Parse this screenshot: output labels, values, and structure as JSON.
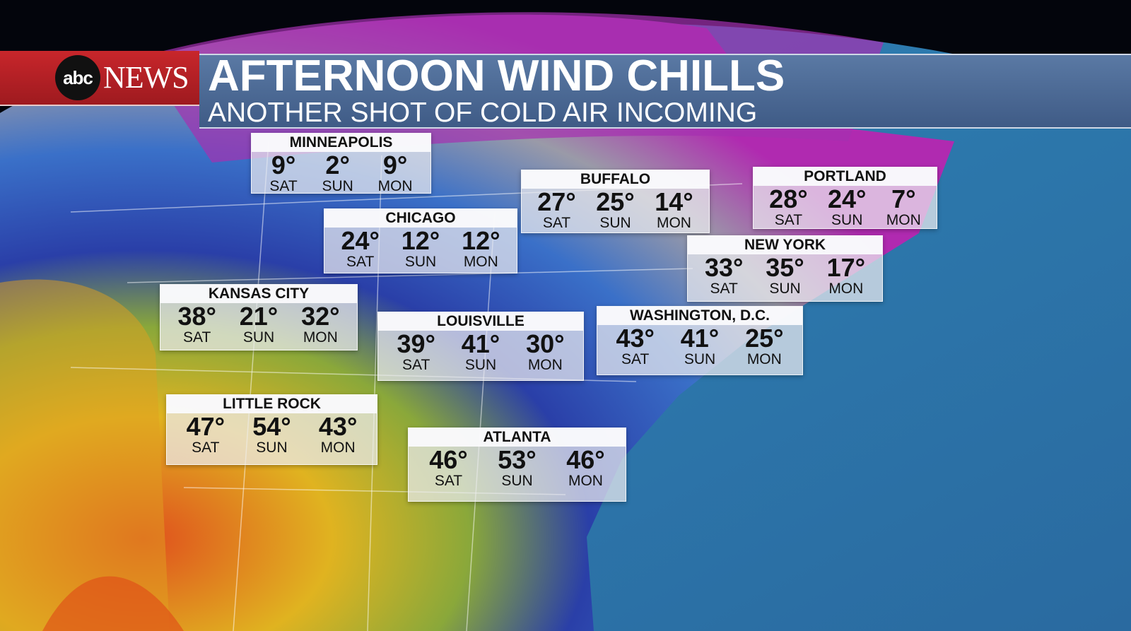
{
  "header": {
    "brand": "abc NEWS",
    "logo_text": "abc",
    "news_text": "NEWS",
    "title": "AFTERNOON WIND CHILLS",
    "subtitle": "ANOTHER SHOT OF COLD AIR INCOMING"
  },
  "colors": {
    "brand_red": "#c8262b",
    "title_bar": "#4d6894"
  },
  "cities": [
    {
      "name": "MINNEAPOLIS",
      "days": [
        {
          "temp": "9°",
          "day": "SAT"
        },
        {
          "temp": "2°",
          "day": "SUN"
        },
        {
          "temp": "9°",
          "day": "MON"
        }
      ]
    },
    {
      "name": "CHICAGO",
      "days": [
        {
          "temp": "24°",
          "day": "SAT"
        },
        {
          "temp": "12°",
          "day": "SUN"
        },
        {
          "temp": "12°",
          "day": "MON"
        }
      ]
    },
    {
      "name": "BUFFALO",
      "days": [
        {
          "temp": "27°",
          "day": "SAT"
        },
        {
          "temp": "25°",
          "day": "SUN"
        },
        {
          "temp": "14°",
          "day": "MON"
        }
      ]
    },
    {
      "name": "PORTLAND",
      "days": [
        {
          "temp": "28°",
          "day": "SAT"
        },
        {
          "temp": "24°",
          "day": "SUN"
        },
        {
          "temp": "7°",
          "day": "MON"
        }
      ]
    },
    {
      "name": "NEW YORK",
      "days": [
        {
          "temp": "33°",
          "day": "SAT"
        },
        {
          "temp": "35°",
          "day": "SUN"
        },
        {
          "temp": "17°",
          "day": "MON"
        }
      ]
    },
    {
      "name": "KANSAS CITY",
      "days": [
        {
          "temp": "38°",
          "day": "SAT"
        },
        {
          "temp": "21°",
          "day": "SUN"
        },
        {
          "temp": "32°",
          "day": "MON"
        }
      ]
    },
    {
      "name": "LOUISVILLE",
      "days": [
        {
          "temp": "39°",
          "day": "SAT"
        },
        {
          "temp": "41°",
          "day": "SUN"
        },
        {
          "temp": "30°",
          "day": "MON"
        }
      ]
    },
    {
      "name": "WASHINGTON, D.C.",
      "days": [
        {
          "temp": "43°",
          "day": "SAT"
        },
        {
          "temp": "41°",
          "day": "SUN"
        },
        {
          "temp": "25°",
          "day": "MON"
        }
      ]
    },
    {
      "name": "LITTLE ROCK",
      "days": [
        {
          "temp": "47°",
          "day": "SAT"
        },
        {
          "temp": "54°",
          "day": "SUN"
        },
        {
          "temp": "43°",
          "day": "MON"
        }
      ]
    },
    {
      "name": "ATLANTA",
      "days": [
        {
          "temp": "46°",
          "day": "SAT"
        },
        {
          "temp": "53°",
          "day": "SUN"
        },
        {
          "temp": "46°",
          "day": "MON"
        }
      ]
    }
  ]
}
